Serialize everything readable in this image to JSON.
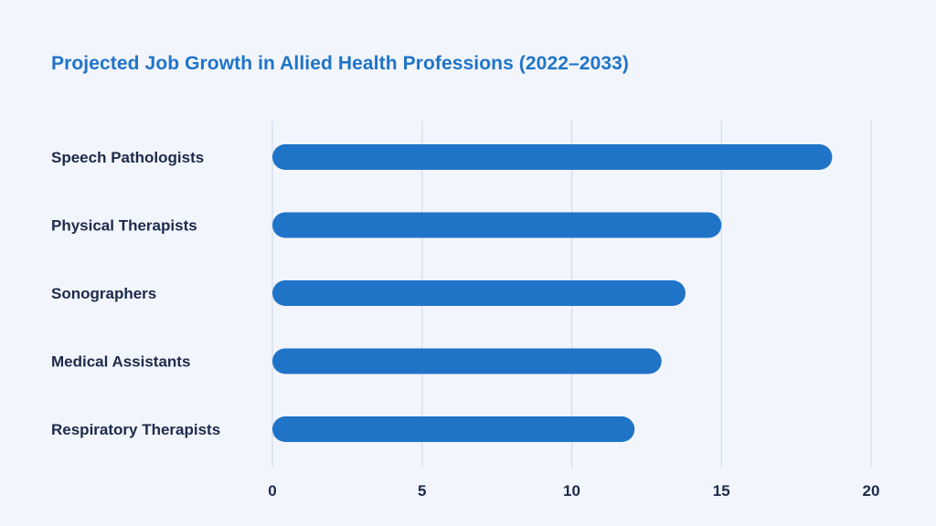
{
  "chart_data": {
    "type": "bar",
    "orientation": "horizontal",
    "title": "Projected Job Growth in Allied Health Professions (2022–2033)",
    "xlabel": "",
    "ylabel": "",
    "categories": [
      "Speech Pathologists",
      "Physical Therapists",
      "Sonographers",
      "Medical Assistants",
      "Respiratory Therapists"
    ],
    "values": [
      18.7,
      15.0,
      13.8,
      13.0,
      12.1
    ],
    "xlim": [
      0,
      20
    ],
    "ticks": [
      "0",
      "5",
      "10",
      "15",
      "20"
    ],
    "tick_values": [
      0,
      5,
      10,
      15,
      20
    ],
    "grid": true,
    "bar_color": "#1f74c8",
    "title_color": "#1f74c8",
    "label_color": "#1c2a4a",
    "grid_color": "#c9d7ee",
    "background": "#f2f5fc"
  }
}
